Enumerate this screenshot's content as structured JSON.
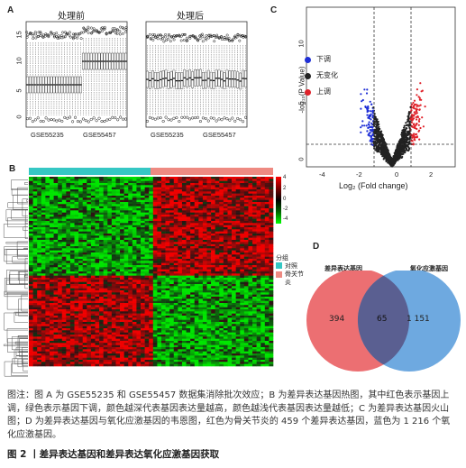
{
  "panelA": {
    "letter": "A",
    "left_title": "处理前",
    "right_title": "处理后",
    "yticks": [
      "0",
      "5",
      "10",
      "15"
    ],
    "xlabels": [
      "GSE55235",
      "GSE55457"
    ]
  },
  "panelB": {
    "letter": "B",
    "scale_ticks": [
      "4",
      "2",
      "0",
      "-2",
      "-4"
    ],
    "legend_title": "分组",
    "legend_items": [
      {
        "label": "对照",
        "color": "#35c7c4"
      },
      {
        "label": "骨关节炎",
        "color": "#ee8a82"
      }
    ]
  },
  "panelC": {
    "letter": "C",
    "legend": [
      {
        "label": "下调",
        "color": "#1f2fd6"
      },
      {
        "label": "无变化",
        "color": "#222222"
      },
      {
        "label": "上调",
        "color": "#e0222a"
      }
    ],
    "xlabel": "Log₂ (Fold change)",
    "ylabel": "-log₁₀(P Value)",
    "xticks": [
      "-4",
      "-2",
      "0",
      "2"
    ],
    "yticks": [
      "0",
      "5",
      "10"
    ]
  },
  "panelD": {
    "letter": "D",
    "left_label": "差异表达基因",
    "right_label": "氧化应激基因",
    "left_only": "394",
    "overlap": "65",
    "right_only": "1 151"
  },
  "caption": "图注：图 A 为 GSE55235 和 GSE55457 数据集消除批次效应；B 为差异表达基因热图，其中红色表示基因上调，绿色表示基因下调，颜色越深代表基因表达量越高，颜色越浅代表基因表达量越低；C 为差异表达基因火山图；D 为差异表达基因与氧化应激基因的韦恩图，红色为骨关节炎的 459 个差异表达基因，蓝色为 1 216 个氧化应激基因。",
  "figure_title": "图 2 丨差异表达基因和差异表达氧化应激基因获取",
  "colors": {
    "control": "#35c7c4",
    "oa": "#ee8a82",
    "venn_left": "#ec6f72",
    "venn_right": "#6ea9e0",
    "venn_overlap": "#5a5f91"
  }
}
